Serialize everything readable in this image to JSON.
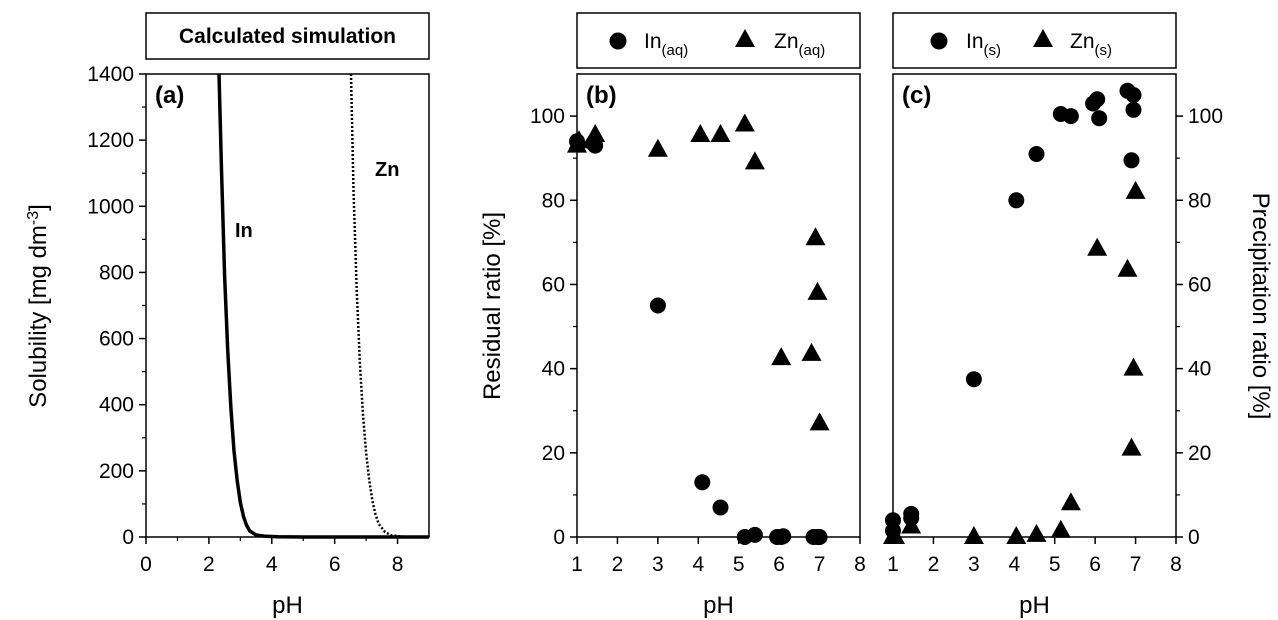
{
  "chart_data": [
    {
      "panel": "(a)",
      "type": "line",
      "header_box": "Calculated simulation",
      "xlabel": "pH",
      "ylabel": "Solubility [mg dm-3]",
      "ylabel_parts": {
        "main": "Solubility [mg dm",
        "sup": "-3",
        "end": "]"
      },
      "xlim": [
        0,
        9
      ],
      "ylim": [
        0,
        1400
      ],
      "xticks": [
        0,
        2,
        4,
        6,
        8
      ],
      "yticks": [
        0,
        200,
        400,
        600,
        800,
        1000,
        1200,
        1400
      ],
      "grid": false,
      "series": [
        {
          "name": "In",
          "style": "solid",
          "x": [
            2.32,
            2.4,
            2.5,
            2.6,
            2.7,
            2.8,
            2.9,
            3.0,
            3.1,
            3.2,
            3.3,
            3.5,
            3.8,
            4.2,
            5.0,
            9.0
          ],
          "y": [
            1400,
            1110,
            790,
            560,
            390,
            260,
            170,
            105,
            62,
            35,
            18,
            6,
            2,
            0.5,
            0,
            0
          ]
        },
        {
          "name": "Zn",
          "style": "dotted",
          "x": [
            6.52,
            6.6,
            6.7,
            6.8,
            6.9,
            7.0,
            7.1,
            7.2,
            7.3,
            7.4,
            7.6,
            7.8,
            8.2,
            9.0
          ],
          "y": [
            1400,
            1050,
            750,
            530,
            370,
            255,
            170,
            110,
            68,
            40,
            15,
            5,
            1,
            0
          ]
        }
      ]
    },
    {
      "panel": "(b)",
      "type": "scatter",
      "xlabel": "pH",
      "ylabel": "Residual ratio [%]",
      "xlim": [
        1,
        8
      ],
      "ylim": [
        0,
        110
      ],
      "xticks": [
        1,
        2,
        3,
        4,
        5,
        6,
        7,
        8
      ],
      "yticks": [
        0,
        20,
        40,
        60,
        80,
        100
      ],
      "legend_position": "top",
      "grid": false,
      "series": [
        {
          "name": "In",
          "sub": "(aq)",
          "marker": "circle",
          "x": [
            1.0,
            1.4,
            1.45,
            3.0,
            4.1,
            4.55,
            5.15,
            5.4,
            5.95,
            6.05,
            6.1,
            6.85,
            6.95,
            7.0
          ],
          "y": [
            94,
            93.5,
            93,
            55,
            13,
            7,
            0,
            0.5,
            0,
            0,
            0.2,
            0,
            0,
            0
          ]
        },
        {
          "name": "Zn",
          "sub": "(aq)",
          "marker": "triangle",
          "x": [
            1.0,
            1.05,
            1.45,
            3.0,
            4.05,
            4.55,
            5.15,
            5.4,
            6.05,
            6.8,
            6.9,
            6.95,
            7.0
          ],
          "y": [
            93,
            94,
            95.5,
            92,
            95.5,
            95.5,
            98,
            89,
            42.5,
            43.5,
            71,
            58,
            27
          ]
        }
      ]
    },
    {
      "panel": "(c)",
      "type": "scatter",
      "xlabel": "pH",
      "ylabel": "Precipitation ratio [%]",
      "xlim": [
        1,
        8
      ],
      "ylim": [
        0,
        110
      ],
      "xticks": [
        1,
        2,
        3,
        4,
        5,
        6,
        7,
        8
      ],
      "yticks": [
        0,
        20,
        40,
        60,
        80,
        100
      ],
      "legend_position": "top",
      "grid": false,
      "series": [
        {
          "name": "In",
          "sub": "(s)",
          "marker": "circle",
          "x": [
            1.0,
            1.0,
            1.45,
            1.45,
            3.0,
            4.05,
            4.55,
            5.15,
            5.4,
            5.95,
            6.05,
            6.1,
            6.8,
            6.9,
            6.95,
            6.95
          ],
          "y": [
            4,
            1.5,
            5.5,
            4.5,
            37.5,
            80,
            91,
            100.5,
            100,
            103,
            104,
            99.5,
            106,
            89.5,
            105,
            101.5
          ]
        },
        {
          "name": "Zn",
          "sub": "(s)",
          "marker": "triangle",
          "x": [
            1.0,
            1.05,
            1.45,
            3.0,
            4.05,
            4.55,
            5.15,
            5.4,
            6.05,
            6.8,
            6.9,
            6.95,
            7.0
          ],
          "y": [
            0,
            0,
            2.5,
            0,
            0,
            0.5,
            1.5,
            8,
            68.5,
            63.5,
            21,
            40,
            82
          ]
        }
      ]
    }
  ],
  "panel_labels": {
    "a": "(a)",
    "b": "(b)",
    "c": "(c)"
  },
  "curve_labels": {
    "in": "In",
    "zn": "Zn"
  }
}
